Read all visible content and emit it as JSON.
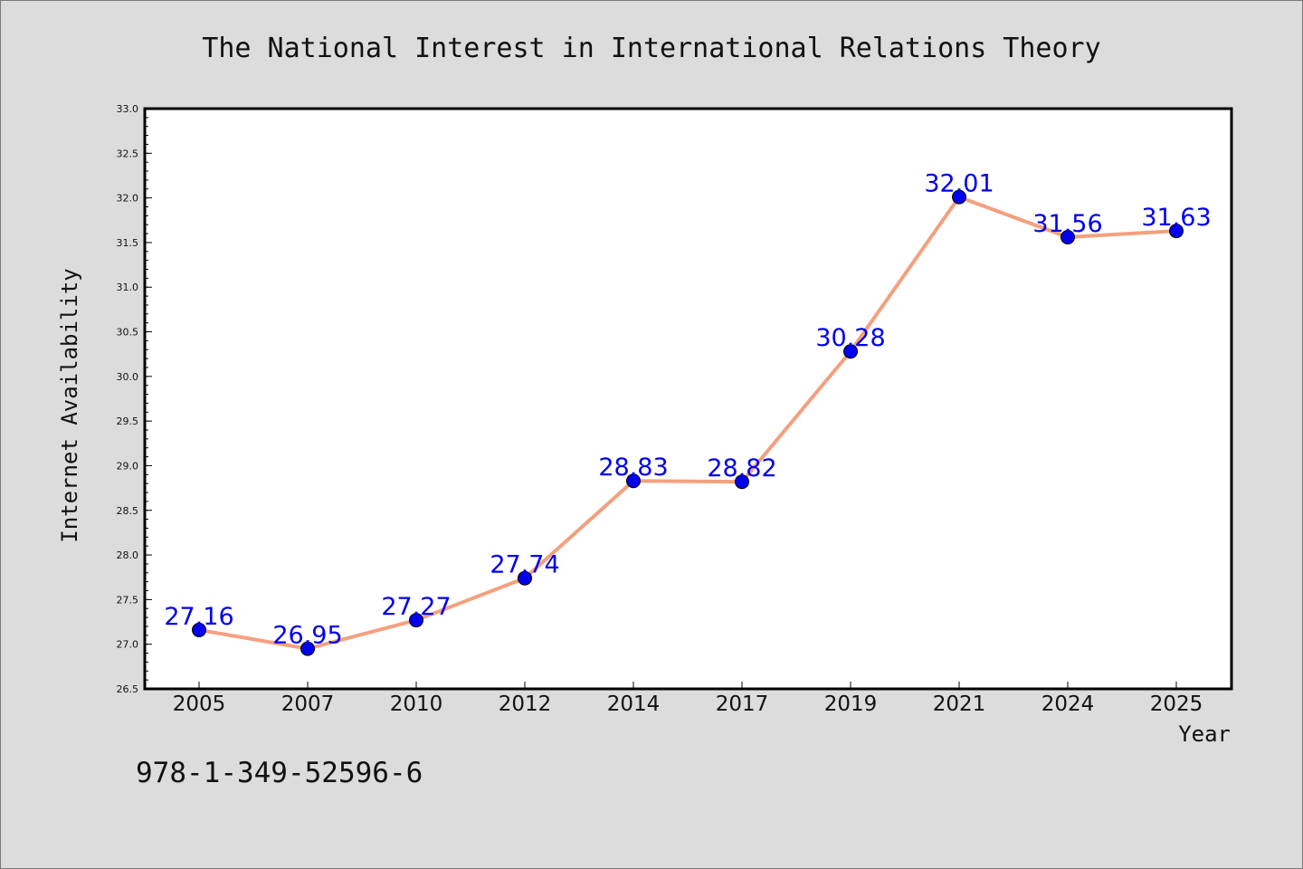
{
  "chart_data": {
    "type": "line",
    "title": "The National Interest in International Relations Theory",
    "xlabel": "Year",
    "ylabel": "Internet Availability",
    "categories": [
      "2005",
      "2007",
      "2010",
      "2012",
      "2014",
      "2017",
      "2019",
      "2021",
      "2024",
      "2025"
    ],
    "series": [
      {
        "values": [
          27.16,
          26.95,
          27.27,
          27.74,
          28.83,
          28.82,
          30.28,
          32.01,
          31.56,
          31.63
        ],
        "data_labels": [
          "27.16",
          "26.95",
          "27.27",
          "27.74",
          "28.83",
          "28.82",
          "30.28",
          "32.01",
          "31.56",
          "31.63"
        ],
        "line_color": "#f4a07e",
        "marker_color": "#0000ee"
      }
    ],
    "ylim": [
      26.5,
      33.0
    ],
    "yticks": [
      "26.5",
      "27.0",
      "27.5",
      "28.0",
      "28.5",
      "29.0",
      "29.5",
      "30.0",
      "30.5",
      "31.0",
      "31.5",
      "32.0",
      "32.5",
      "33.0"
    ],
    "grid": false,
    "legend": "none"
  },
  "footer": {
    "isbn": "978-1-349-52596-6"
  },
  "colors": {
    "background": "#dcdcdc",
    "plot_background": "#ffffff",
    "label_color": "#0000ee"
  }
}
